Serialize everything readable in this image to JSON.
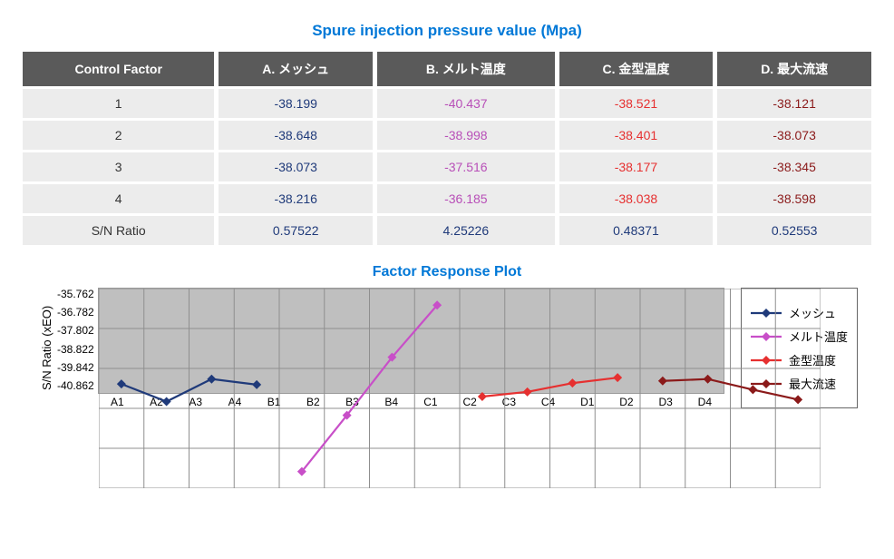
{
  "table_title": "Spure injection pressure value (Mpa)",
  "columns": [
    "Control Factor",
    "A. メッシュ",
    "B. メルト温度",
    "C. 金型温度",
    "D. 最大流速"
  ],
  "row_labels": [
    "1",
    "2",
    "3",
    "4",
    "S/N Ratio"
  ],
  "cells": {
    "A": [
      "-38.199",
      "-38.648",
      "-38.073",
      "-38.216",
      "0.57522"
    ],
    "B": [
      "-40.437",
      "-38.998",
      "-37.516",
      "-36.185",
      "4.25226"
    ],
    "C": [
      "-38.521",
      "-38.401",
      "-38.177",
      "-38.038",
      "0.48371"
    ],
    "D": [
      "-38.121",
      "-38.073",
      "-38.345",
      "-38.598",
      "0.52553"
    ]
  },
  "col_colors": {
    "A": "#1f3a7a",
    "B": "#b84fb8",
    "C": "#e63030",
    "D": "#8b1a1a",
    "SN": "#1f3a7a"
  },
  "header_bg": "#5a5a5a",
  "header_fg": "#ffffff",
  "cell_bg": "#ececec",
  "chart": {
    "title": "Factor Response Plot",
    "ylabel": "S/N Ratio (xEO)",
    "ylim": [
      -40.862,
      -35.762
    ],
    "ytick_step": 1.02,
    "yticks": [
      "-35.762",
      "-36.782",
      "-37.802",
      "-38.822",
      "-39.842",
      "-40.862"
    ],
    "xcats": [
      "A1",
      "A2",
      "A3",
      "A4",
      "B1",
      "B2",
      "B3",
      "B4",
      "C1",
      "C2",
      "C3",
      "C4",
      "D1",
      "D2",
      "D3",
      "D4"
    ],
    "plot_bg": "#bfbfbf",
    "grid_color": "#8f8f8f",
    "border_color": "#999999",
    "series": [
      {
        "name": "メッシュ",
        "color": "#1f3a7a",
        "marker": "diamond",
        "x": [
          0,
          1,
          2,
          3
        ],
        "y": [
          -38.199,
          -38.648,
          -38.073,
          -38.216
        ]
      },
      {
        "name": "メルト温度",
        "color": "#c84fc8",
        "marker": "diamond",
        "x": [
          4,
          5,
          6,
          7
        ],
        "y": [
          -40.437,
          -38.998,
          -37.516,
          -36.185
        ]
      },
      {
        "name": "金型温度",
        "color": "#e63030",
        "marker": "diamond",
        "x": [
          8,
          9,
          10,
          11
        ],
        "y": [
          -38.521,
          -38.401,
          -38.177,
          -38.038
        ]
      },
      {
        "name": "最大流速",
        "color": "#8b1a1a",
        "marker": "diamond",
        "x": [
          12,
          13,
          14,
          15
        ],
        "y": [
          -38.121,
          -38.073,
          -38.345,
          -38.598
        ]
      }
    ],
    "line_width": 2.2,
    "marker_size": 5
  }
}
